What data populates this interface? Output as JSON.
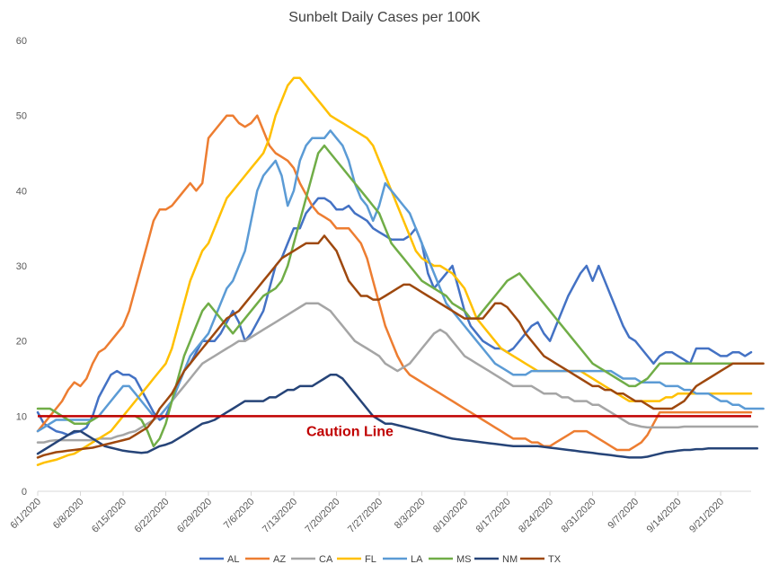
{
  "chart_data": {
    "type": "line",
    "title": "Sunbelt Daily Cases per 100K",
    "xlabel": "",
    "ylabel": "",
    "ylim": [
      0,
      60
    ],
    "yticks": [
      0,
      10,
      20,
      30,
      40,
      50,
      60
    ],
    "x_start": "6/1/2020",
    "x_tick_labels": [
      "6/1/2020",
      "6/8/2020",
      "6/15/2020",
      "6/22/2020",
      "6/29/2020",
      "7/6/2020",
      "7/13/2020",
      "7/20/2020",
      "7/27/2020",
      "8/3/2020",
      "8/10/2020",
      "8/17/2020",
      "8/24/2020",
      "8/31/2020",
      "9/7/2020",
      "9/14/2020",
      "9/21/2020"
    ],
    "grid": false,
    "legend_position": "bottom",
    "threshold": {
      "value": 10,
      "label": "Caution Line",
      "color": "#c00000"
    },
    "series": [
      {
        "name": "AL",
        "color": "#4472c4",
        "values": [
          10.5,
          9,
          8.5,
          8,
          7.8,
          7.5,
          7.8,
          8,
          8.5,
          10,
          12.5,
          14,
          15.5,
          16,
          15.5,
          15.5,
          15,
          13.5,
          12,
          10.5,
          9.5,
          10,
          12,
          14,
          16,
          17,
          18.5,
          20,
          20,
          20,
          21,
          22.5,
          24,
          22.5,
          20,
          21,
          22.5,
          24,
          27,
          30,
          31,
          33,
          35,
          35,
          37,
          38,
          39,
          39,
          38.5,
          37.5,
          37.5,
          38,
          37,
          36.5,
          36,
          35,
          34.5,
          34,
          33.5,
          33.5,
          33.5,
          34,
          35,
          33,
          29,
          27,
          28,
          29,
          30,
          27,
          24,
          22,
          21,
          20,
          19.5,
          19,
          19,
          18.5,
          19,
          20,
          21,
          22,
          22.5,
          21,
          20,
          22,
          24,
          26,
          27.5,
          29,
          30,
          28,
          30,
          28,
          26,
          24,
          22,
          20.5,
          20,
          19,
          18,
          17,
          18,
          18.5,
          18.5,
          18,
          17.5,
          17,
          19,
          19,
          19,
          18.5,
          18,
          18,
          18.5,
          18.5,
          18,
          18.5
        ]
      },
      {
        "name": "AZ",
        "color": "#ed7d31",
        "values": [
          8,
          9,
          10,
          11,
          12,
          13.5,
          14.5,
          14,
          15,
          17,
          18.5,
          19,
          20,
          21,
          22,
          24,
          27,
          30,
          33,
          36,
          37.5,
          37.5,
          38,
          39,
          40,
          41,
          40,
          41,
          47,
          48,
          49,
          50,
          50,
          49,
          48.5,
          49,
          50,
          48,
          46,
          45,
          44.5,
          44,
          43,
          41,
          39.5,
          38,
          37,
          36.5,
          36,
          35,
          35,
          35,
          34,
          33,
          31,
          28,
          25,
          22,
          20,
          18,
          16.5,
          15.5,
          15,
          14.5,
          14,
          13.5,
          13,
          12.5,
          12,
          11.5,
          11,
          10.5,
          10,
          9.5,
          9,
          8.5,
          8,
          7.5,
          7,
          7,
          7,
          6.5,
          6.5,
          6,
          6,
          6.5,
          7,
          7.5,
          8,
          8,
          8,
          7.5,
          7,
          6.5,
          6,
          5.5,
          5.5,
          5.5,
          6,
          6.5,
          7.5,
          9,
          10.5,
          10.5,
          10.5,
          10.5,
          10.5,
          10.5,
          10.5,
          10.5,
          10.5,
          10.5,
          10.5,
          10.5,
          10.5,
          10.5,
          10.5,
          10.5
        ]
      },
      {
        "name": "CA",
        "color": "#a5a5a5",
        "values": [
          6.5,
          6.5,
          6.7,
          6.8,
          6.8,
          6.8,
          6.8,
          6.8,
          6.8,
          6.8,
          7,
          7,
          7,
          7.3,
          7.5,
          7.8,
          8,
          8.5,
          9,
          9.5,
          10,
          11,
          12,
          13,
          14,
          15,
          16,
          17,
          17.5,
          18,
          18.5,
          19,
          19.5,
          20,
          20,
          20.5,
          21,
          21.5,
          22,
          22.5,
          23,
          23.5,
          24,
          24.5,
          25,
          25,
          25,
          24.5,
          24,
          23,
          22,
          21,
          20,
          19.5,
          19,
          18.5,
          18,
          17,
          16.5,
          16,
          16.5,
          17,
          18,
          19,
          20,
          21,
          21.5,
          21,
          20,
          19,
          18,
          17.5,
          17,
          16.5,
          16,
          15.5,
          15,
          14.5,
          14,
          14,
          14,
          14,
          13.5,
          13,
          13,
          13,
          12.5,
          12.5,
          12,
          12,
          12,
          11.5,
          11.5,
          11,
          10.5,
          10,
          9.5,
          9,
          8.8,
          8.6,
          8.5,
          8.5,
          8.5,
          8.5,
          8.5,
          8.5,
          8.6,
          8.6,
          8.6,
          8.6,
          8.6,
          8.6,
          8.6,
          8.6,
          8.6,
          8.6,
          8.6,
          8.6,
          8.6
        ]
      },
      {
        "name": "FL",
        "color": "#ffc000",
        "values": [
          3.5,
          3.8,
          4,
          4.2,
          4.5,
          4.8,
          5,
          5.5,
          6,
          6.5,
          7,
          7.5,
          8,
          9,
          10,
          11,
          12,
          13,
          14,
          15,
          16,
          17,
          19,
          22,
          25,
          28,
          30,
          32,
          33,
          35,
          37,
          39,
          40,
          41,
          42,
          43,
          44,
          45,
          47,
          50,
          52,
          54,
          55,
          55,
          54,
          53,
          52,
          51,
          50,
          49.5,
          49,
          48.5,
          48,
          47.5,
          47,
          46,
          44,
          42,
          40,
          38,
          36,
          34,
          32,
          31,
          30.5,
          30,
          30,
          29.5,
          29,
          28,
          27,
          25,
          23,
          22,
          21,
          20,
          19,
          18.5,
          18,
          17.5,
          17,
          16.5,
          16,
          16,
          16,
          16,
          16,
          16,
          16,
          16,
          15.5,
          15,
          14.5,
          14,
          13.5,
          13,
          12.5,
          12,
          12,
          12,
          12,
          12,
          12,
          12.5,
          12.5,
          13,
          13,
          13,
          13,
          13,
          13,
          13,
          13,
          13,
          13,
          13,
          13,
          13
        ]
      },
      {
        "name": "LA",
        "color": "#5b9bd5",
        "values": [
          8,
          8.5,
          9,
          9.5,
          9.5,
          9.5,
          9.5,
          9.5,
          9.5,
          9.5,
          10,
          11,
          12,
          13,
          14,
          14,
          13,
          12,
          11,
          10,
          10,
          11,
          12,
          14,
          16,
          18,
          19,
          20,
          21,
          23,
          25,
          27,
          28,
          30,
          32,
          36,
          40,
          42,
          43,
          44,
          42,
          38,
          40,
          44,
          46,
          47,
          47,
          47,
          48,
          47,
          46,
          44,
          41,
          39,
          38,
          36,
          38,
          41,
          40,
          39,
          38,
          37,
          35,
          33,
          31,
          29,
          27,
          25,
          24,
          23,
          22,
          21,
          20,
          19,
          18,
          17,
          16.5,
          16,
          15.5,
          15.5,
          15.5,
          16,
          16,
          16,
          16,
          16,
          16,
          16,
          16,
          16,
          16,
          16,
          16,
          16,
          16,
          15.5,
          15,
          15,
          15,
          14.5,
          14.5,
          14.5,
          14.5,
          14,
          14,
          14,
          13.5,
          13.5,
          13,
          13,
          13,
          12.5,
          12,
          12,
          11.5,
          11.5,
          11,
          11,
          11,
          11
        ]
      },
      {
        "name": "MS",
        "color": "#70ad47",
        "values": [
          11,
          11,
          11,
          10.5,
          10,
          9.5,
          9,
          9,
          9,
          9.5,
          10,
          10,
          10,
          10,
          10,
          10,
          10,
          9.5,
          8,
          6,
          7,
          9,
          12,
          15,
          18,
          20,
          22,
          24,
          25,
          24,
          23,
          22,
          21,
          22,
          23,
          24,
          25,
          26,
          26.5,
          27,
          28,
          30,
          33,
          36,
          39,
          42,
          45,
          46,
          45,
          44,
          43,
          42,
          41,
          40,
          39,
          38,
          37,
          35,
          33,
          32,
          31,
          30,
          29,
          28,
          27.5,
          27,
          26.5,
          26,
          25,
          24.5,
          24,
          23,
          23,
          24,
          25,
          26,
          27,
          28,
          28.5,
          29,
          28,
          27,
          26,
          25,
          24,
          23,
          22,
          21,
          20,
          19,
          18,
          17,
          16.5,
          16,
          15.5,
          15,
          14.5,
          14,
          14,
          14.5,
          15,
          16,
          17,
          17,
          17,
          17,
          17,
          17,
          17,
          17,
          17,
          17,
          17,
          17,
          17,
          17,
          17
        ]
      },
      {
        "name": "NM",
        "color": "#264478",
        "values": [
          5,
          5.5,
          6,
          6.5,
          7,
          7.5,
          8,
          8,
          7.5,
          7,
          6.5,
          6,
          5.8,
          5.6,
          5.4,
          5.3,
          5.2,
          5.1,
          5.2,
          5.6,
          6,
          6.2,
          6.5,
          7,
          7.5,
          8,
          8.5,
          9,
          9.2,
          9.5,
          10,
          10.5,
          11,
          11.5,
          12,
          12,
          12,
          12,
          12.5,
          12.5,
          13,
          13.5,
          13.5,
          14,
          14,
          14,
          14.5,
          15,
          15.5,
          15.5,
          15,
          14,
          13,
          12,
          11,
          10,
          9.5,
          9,
          9,
          8.8,
          8.6,
          8.4,
          8.2,
          8,
          7.8,
          7.6,
          7.4,
          7.2,
          7,
          6.9,
          6.8,
          6.7,
          6.6,
          6.5,
          6.4,
          6.3,
          6.2,
          6.1,
          6,
          6,
          6,
          6,
          6,
          5.9,
          5.8,
          5.7,
          5.6,
          5.5,
          5.4,
          5.3,
          5.2,
          5.1,
          5,
          4.9,
          4.8,
          4.7,
          4.6,
          4.5,
          4.5,
          4.5,
          4.6,
          4.8,
          5,
          5.2,
          5.3,
          5.4,
          5.5,
          5.5,
          5.6,
          5.6,
          5.7,
          5.7,
          5.7,
          5.7,
          5.7,
          5.7,
          5.7,
          5.7,
          5.7
        ]
      },
      {
        "name": "TX",
        "color": "#9e480e",
        "values": [
          4.5,
          4.8,
          5,
          5.2,
          5.3,
          5.4,
          5.5,
          5.6,
          5.7,
          5.8,
          6,
          6.2,
          6.4,
          6.6,
          6.8,
          7,
          7.5,
          8,
          8.5,
          9.5,
          11,
          12,
          13,
          14.5,
          16,
          17,
          18,
          19,
          20,
          21,
          22,
          23,
          23.5,
          24,
          25,
          26,
          27,
          28,
          29,
          30,
          31,
          31.5,
          32,
          32.5,
          33,
          33,
          33,
          34,
          33,
          32,
          30,
          28,
          27,
          26,
          26,
          25.5,
          25.5,
          26,
          26.5,
          27,
          27.5,
          27.5,
          27,
          26.5,
          26,
          25.5,
          25,
          24.5,
          24,
          23.5,
          23,
          23,
          23,
          23,
          24,
          25,
          25,
          24.5,
          23.5,
          22.5,
          21,
          20,
          19,
          18,
          17.5,
          17,
          16.5,
          16,
          15.5,
          15,
          14.5,
          14,
          14,
          13.5,
          13.5,
          13,
          13,
          12.5,
          12,
          12,
          11.5,
          11,
          11,
          11,
          11,
          11.5,
          12,
          13,
          14,
          14.5,
          15,
          15.5,
          16,
          16.5,
          17,
          17,
          17,
          17,
          17,
          17
        ]
      }
    ]
  }
}
